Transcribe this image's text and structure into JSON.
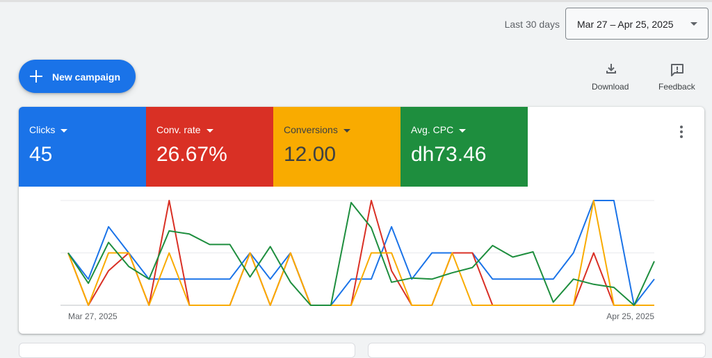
{
  "header": {
    "range_label": "Last 30 days",
    "date_range": "Mar 27 – Apr 25, 2025"
  },
  "actions": {
    "new_campaign": "New campaign",
    "download": "Download",
    "feedback": "Feedback"
  },
  "metrics": [
    {
      "label": "Clicks",
      "value": "45",
      "color": "#1a73e8"
    },
    {
      "label": "Conv. rate",
      "value": "26.67%",
      "color": "#d93025"
    },
    {
      "label": "Conversions",
      "value": "12.00",
      "color": "#f9ab00"
    },
    {
      "label": "Avg. CPC",
      "value": "dh73.46",
      "color": "#1e8e3e"
    }
  ],
  "chart_data": {
    "type": "line",
    "x_start_label": "Mar 27, 2025",
    "x_end_label": "Apr 25, 2025",
    "grid": true,
    "ylim": [
      0,
      1
    ],
    "points_per_series": 30,
    "series": [
      {
        "metric": "Clicks",
        "color": "#1a73e8",
        "values": [
          0.5,
          0.25,
          0.75,
          0.5,
          0.25,
          0.25,
          0.25,
          0.25,
          0.25,
          0.5,
          0.25,
          0.5,
          0.0,
          0.0,
          0.25,
          0.25,
          0.75,
          0.25,
          0.5,
          0.5,
          0.5,
          0.25,
          0.25,
          0.25,
          0.25,
          0.5,
          1.0,
          1.0,
          0.0,
          0.25
        ]
      },
      {
        "metric": "Conv. rate",
        "color": "#d93025",
        "values": [
          0.5,
          0.0,
          0.33,
          0.5,
          0.0,
          1.0,
          0.0,
          0.0,
          0.0,
          0.5,
          0.0,
          0.5,
          0.0,
          0.0,
          0.0,
          1.0,
          0.33,
          0.0,
          0.0,
          0.5,
          0.5,
          0.0,
          0.0,
          0.0,
          0.0,
          0.0,
          0.5,
          0.0,
          0.0,
          0.0
        ]
      },
      {
        "metric": "Conversions",
        "color": "#f9ab00",
        "values": [
          0.5,
          0.0,
          0.5,
          0.5,
          0.0,
          0.5,
          0.0,
          0.0,
          0.0,
          0.5,
          0.0,
          0.5,
          0.0,
          0.0,
          0.0,
          0.5,
          0.5,
          0.0,
          0.0,
          0.5,
          0.0,
          0.0,
          0.0,
          0.0,
          0.0,
          0.0,
          1.0,
          0.0,
          0.0,
          0.0
        ]
      },
      {
        "metric": "Avg. CPC",
        "color": "#1e8e3e",
        "values": [
          0.5,
          0.21,
          0.6,
          0.37,
          0.25,
          0.71,
          0.68,
          0.58,
          0.58,
          0.27,
          0.56,
          0.22,
          0.0,
          0.0,
          0.98,
          0.74,
          0.22,
          0.26,
          0.25,
          0.31,
          0.36,
          0.57,
          0.46,
          0.51,
          0.03,
          0.25,
          0.2,
          0.17,
          0.0,
          0.42
        ]
      }
    ]
  }
}
